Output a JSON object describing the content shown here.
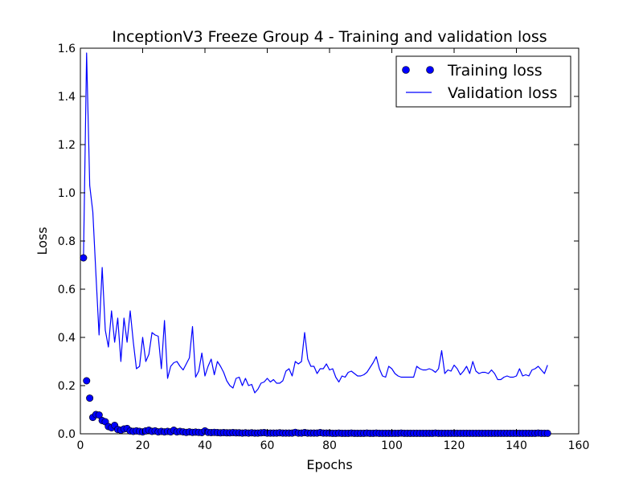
{
  "chart_data": {
    "type": "line",
    "title": "InceptionV3 Freeze Group 4 - Training and validation loss",
    "xlabel": "Epochs",
    "ylabel": "Loss",
    "xlim": [
      0,
      160
    ],
    "ylim": [
      0.0,
      1.6
    ],
    "xticks": [
      0,
      20,
      40,
      60,
      80,
      100,
      120,
      140,
      160
    ],
    "yticks": [
      0.0,
      0.2,
      0.4,
      0.6,
      0.8,
      1.0,
      1.2,
      1.4,
      1.6
    ],
    "xtick_labels": [
      "0",
      "20",
      "40",
      "60",
      "80",
      "100",
      "120",
      "140",
      "160"
    ],
    "ytick_labels": [
      "0.0",
      "0.2",
      "0.4",
      "0.6",
      "0.8",
      "1.0",
      "1.2",
      "1.4",
      "1.6"
    ],
    "grid": false,
    "legend_position": "top-right",
    "series": [
      {
        "name": "Training loss",
        "style": "markers",
        "color": "#0000ff",
        "x": [
          1,
          2,
          3,
          4,
          5,
          6,
          7,
          8,
          9,
          10,
          11,
          12,
          13,
          14,
          15,
          16,
          17,
          18,
          19,
          20,
          21,
          22,
          23,
          24,
          25,
          26,
          27,
          28,
          29,
          30,
          31,
          32,
          33,
          34,
          35,
          36,
          37,
          38,
          39,
          40,
          41,
          42,
          43,
          44,
          45,
          46,
          47,
          48,
          49,
          50,
          51,
          52,
          53,
          54,
          55,
          56,
          57,
          58,
          59,
          60,
          61,
          62,
          63,
          64,
          65,
          66,
          67,
          68,
          69,
          70,
          71,
          72,
          73,
          74,
          75,
          76,
          77,
          78,
          79,
          80,
          81,
          82,
          83,
          84,
          85,
          86,
          87,
          88,
          89,
          90,
          91,
          92,
          93,
          94,
          95,
          96,
          97,
          98,
          99,
          100,
          101,
          102,
          103,
          104,
          105,
          106,
          107,
          108,
          109,
          110,
          111,
          112,
          113,
          114,
          115,
          116,
          117,
          118,
          119,
          120,
          121,
          122,
          123,
          124,
          125,
          126,
          127,
          128,
          129,
          130,
          131,
          132,
          133,
          134,
          135,
          136,
          137,
          138,
          139,
          140,
          141,
          142,
          143,
          144,
          145,
          146,
          147,
          148,
          149,
          150
        ],
        "y": [
          0.73,
          0.22,
          0.148,
          0.068,
          0.08,
          0.078,
          0.055,
          0.05,
          0.03,
          0.025,
          0.035,
          0.018,
          0.015,
          0.02,
          0.022,
          0.012,
          0.01,
          0.012,
          0.01,
          0.008,
          0.012,
          0.015,
          0.01,
          0.012,
          0.008,
          0.01,
          0.008,
          0.01,
          0.008,
          0.015,
          0.008,
          0.01,
          0.008,
          0.006,
          0.008,
          0.006,
          0.007,
          0.006,
          0.005,
          0.012,
          0.006,
          0.005,
          0.006,
          0.005,
          0.004,
          0.005,
          0.004,
          0.004,
          0.005,
          0.004,
          0.004,
          0.003,
          0.004,
          0.003,
          0.004,
          0.003,
          0.003,
          0.004,
          0.005,
          0.003,
          0.003,
          0.003,
          0.003,
          0.004,
          0.003,
          0.003,
          0.003,
          0.003,
          0.006,
          0.003,
          0.003,
          0.005,
          0.003,
          0.003,
          0.003,
          0.003,
          0.005,
          0.003,
          0.003,
          0.003,
          0.002,
          0.002,
          0.003,
          0.002,
          0.002,
          0.002,
          0.003,
          0.002,
          0.002,
          0.002,
          0.002,
          0.003,
          0.002,
          0.002,
          0.003,
          0.002,
          0.002,
          0.002,
          0.002,
          0.002,
          0.002,
          0.002,
          0.003,
          0.002,
          0.002,
          0.002,
          0.002,
          0.002,
          0.002,
          0.002,
          0.002,
          0.002,
          0.002,
          0.003,
          0.002,
          0.002,
          0.002,
          0.002,
          0.002,
          0.002,
          0.002,
          0.002,
          0.002,
          0.002,
          0.002,
          0.002,
          0.002,
          0.002,
          0.002,
          0.002,
          0.002,
          0.002,
          0.002,
          0.002,
          0.002,
          0.002,
          0.002,
          0.002,
          0.002,
          0.002,
          0.002,
          0.002,
          0.002,
          0.002,
          0.002,
          0.002,
          0.003,
          0.002,
          0.002,
          0.002
        ]
      },
      {
        "name": "Validation loss",
        "style": "line",
        "color": "#0000ff",
        "x": [
          1,
          2,
          3,
          4,
          5,
          6,
          7,
          8,
          9,
          10,
          11,
          12,
          13,
          14,
          15,
          16,
          17,
          18,
          19,
          20,
          21,
          22,
          23,
          24,
          25,
          26,
          27,
          28,
          29,
          30,
          31,
          32,
          33,
          34,
          35,
          36,
          37,
          38,
          39,
          40,
          41,
          42,
          43,
          44,
          45,
          46,
          47,
          48,
          49,
          50,
          51,
          52,
          53,
          54,
          55,
          56,
          57,
          58,
          59,
          60,
          61,
          62,
          63,
          64,
          65,
          66,
          67,
          68,
          69,
          70,
          71,
          72,
          73,
          74,
          75,
          76,
          77,
          78,
          79,
          80,
          81,
          82,
          83,
          84,
          85,
          86,
          87,
          88,
          89,
          90,
          91,
          92,
          93,
          94,
          95,
          96,
          97,
          98,
          99,
          100,
          101,
          102,
          103,
          104,
          105,
          106,
          107,
          108,
          109,
          110,
          111,
          112,
          113,
          114,
          115,
          116,
          117,
          118,
          119,
          120,
          121,
          122,
          123,
          124,
          125,
          126,
          127,
          128,
          129,
          130,
          131,
          132,
          133,
          134,
          135,
          136,
          137,
          138,
          139,
          140,
          141,
          142,
          143,
          144,
          145,
          146,
          147,
          148,
          149,
          150
        ],
        "y": [
          0.73,
          1.58,
          1.03,
          0.92,
          0.66,
          0.41,
          0.69,
          0.43,
          0.36,
          0.51,
          0.38,
          0.48,
          0.3,
          0.48,
          0.38,
          0.51,
          0.38,
          0.27,
          0.28,
          0.4,
          0.3,
          0.33,
          0.42,
          0.41,
          0.405,
          0.27,
          0.47,
          0.23,
          0.28,
          0.295,
          0.3,
          0.28,
          0.265,
          0.29,
          0.315,
          0.445,
          0.235,
          0.26,
          0.335,
          0.24,
          0.28,
          0.31,
          0.245,
          0.3,
          0.28,
          0.255,
          0.22,
          0.2,
          0.19,
          0.23,
          0.235,
          0.2,
          0.23,
          0.2,
          0.205,
          0.17,
          0.185,
          0.21,
          0.215,
          0.23,
          0.215,
          0.225,
          0.21,
          0.21,
          0.22,
          0.26,
          0.27,
          0.24,
          0.3,
          0.29,
          0.3,
          0.42,
          0.31,
          0.28,
          0.28,
          0.25,
          0.27,
          0.27,
          0.29,
          0.265,
          0.27,
          0.235,
          0.215,
          0.24,
          0.235,
          0.255,
          0.26,
          0.25,
          0.24,
          0.24,
          0.245,
          0.255,
          0.275,
          0.295,
          0.32,
          0.27,
          0.24,
          0.235,
          0.28,
          0.27,
          0.25,
          0.24,
          0.235,
          0.235,
          0.235,
          0.235,
          0.235,
          0.28,
          0.27,
          0.265,
          0.265,
          0.27,
          0.265,
          0.255,
          0.27,
          0.345,
          0.25,
          0.265,
          0.26,
          0.285,
          0.27,
          0.245,
          0.26,
          0.28,
          0.25,
          0.3,
          0.26,
          0.25,
          0.255,
          0.255,
          0.25,
          0.265,
          0.25,
          0.225,
          0.225,
          0.235,
          0.24,
          0.235,
          0.235,
          0.24,
          0.27,
          0.24,
          0.245,
          0.24,
          0.265,
          0.27,
          0.28,
          0.265,
          0.25,
          0.285
        ]
      }
    ]
  }
}
